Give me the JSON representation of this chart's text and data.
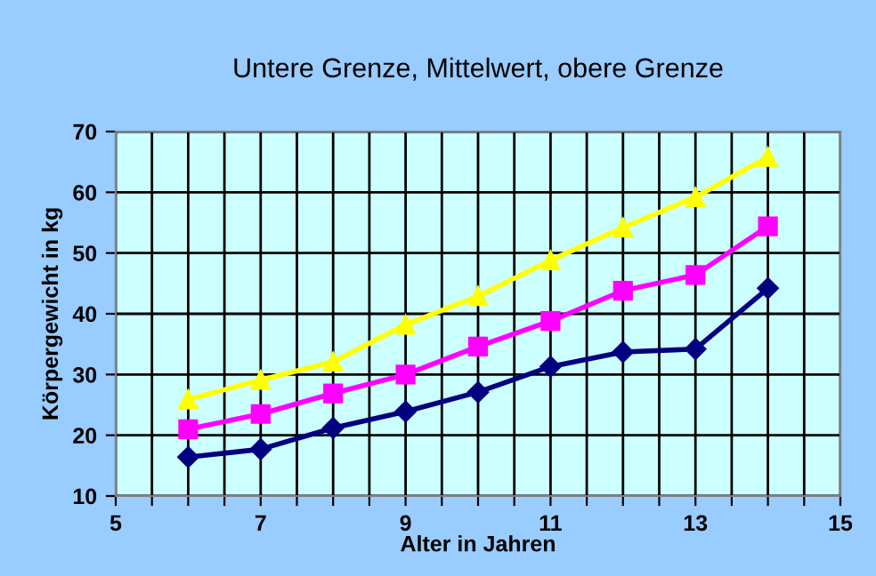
{
  "chart_data": {
    "type": "line",
    "title": "Untere Grenze, Mittelwert, obere Grenze",
    "xlabel": "Alter in Jahren",
    "ylabel": "Körpergewicht in kg",
    "x": [
      6,
      7,
      8,
      9,
      10,
      11,
      12,
      13,
      14
    ],
    "series": [
      {
        "color": "#000080",
        "marker": "diamond",
        "values": [
          16.4,
          17.7,
          21.2,
          23.9,
          27.1,
          31.3,
          33.7,
          34.2,
          44.2
        ]
      },
      {
        "color": "#ff00ff",
        "marker": "square",
        "values": [
          21,
          23.5,
          26.9,
          30,
          34.6,
          38.8,
          43.8,
          46.4,
          54.4
        ]
      },
      {
        "color": "#ffff00",
        "marker": "triangle",
        "values": [
          25.9,
          29.1,
          32.1,
          38.2,
          42.9,
          48.8,
          54.2,
          59.2,
          65.8
        ]
      }
    ],
    "xlim": [
      5,
      15
    ],
    "ylim": [
      10,
      70
    ],
    "xticks": [
      5,
      {
        "value": 5.5,
        "label": null
      },
      {
        "value": 6,
        "label": null
      },
      {
        "value": 6.5,
        "label": null
      },
      7,
      {
        "value": 7.5,
        "label": null
      },
      {
        "value": 8,
        "label": null
      },
      {
        "value": 8.5,
        "label": null
      },
      9,
      {
        "value": 9.5,
        "label": null
      },
      {
        "value": 10,
        "label": null
      },
      {
        "value": 10.5,
        "label": null
      },
      11,
      {
        "value": 11.5,
        "label": null
      },
      {
        "value": 12,
        "label": null
      },
      {
        "value": 12.5,
        "label": null
      },
      13,
      {
        "value": 13.5,
        "label": null
      },
      {
        "value": 14,
        "label": null
      },
      {
        "value": 14.5,
        "label": null
      },
      15
    ],
    "yticks": [
      10,
      20,
      30,
      40,
      50,
      60,
      70
    ],
    "grid": true,
    "line_style": "solid"
  }
}
